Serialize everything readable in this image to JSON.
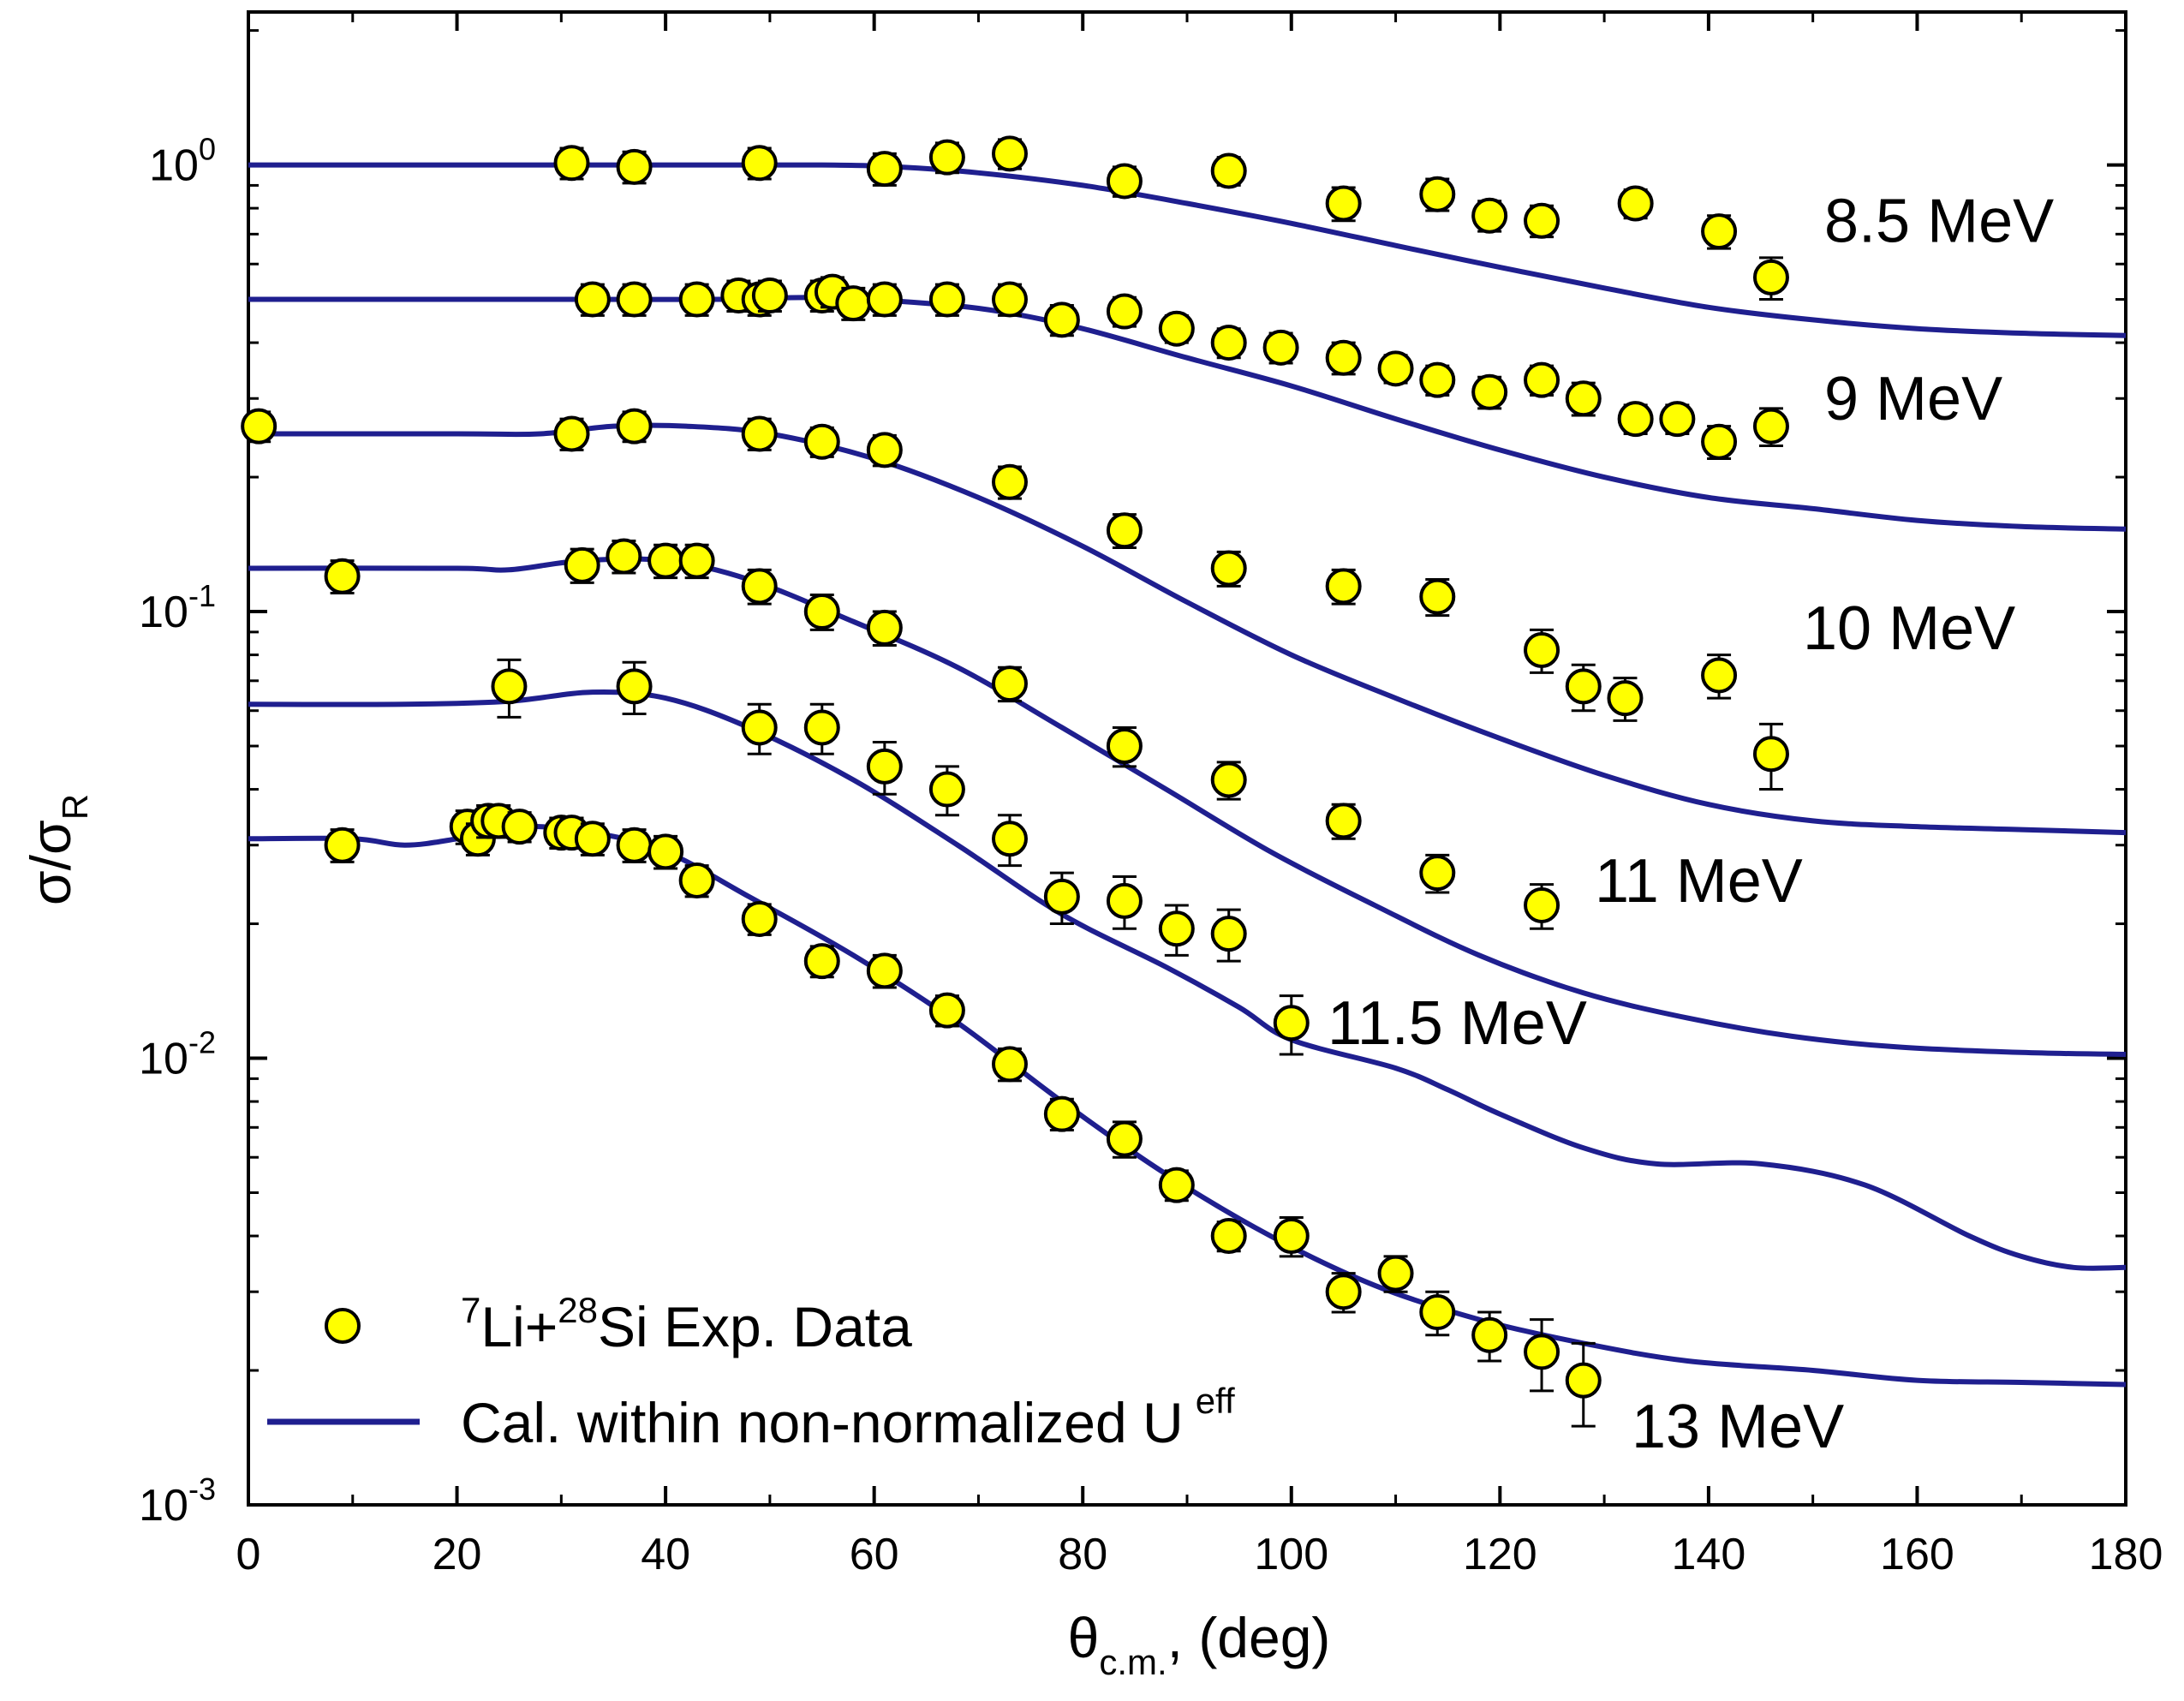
{
  "chart_data": {
    "type": "scatter",
    "xlabel": {
      "main": "θ",
      "sub": "c.m.",
      "suffix": ", (deg)"
    },
    "ylabel": {
      "main": "σ/σ",
      "sub": "R"
    },
    "xlim": [
      0,
      180
    ],
    "ylim": [
      0.001,
      2.2
    ],
    "yscale": "log",
    "grid": false,
    "x_ticks": [
      "0",
      "20",
      "40",
      "60",
      "80",
      "100",
      "120",
      "140",
      "160",
      "180"
    ],
    "y_ticks": [
      {
        "base": "10",
        "exp": "-3"
      },
      {
        "base": "10",
        "exp": "-2"
      },
      {
        "base": "10",
        "exp": "-1"
      },
      {
        "base": "10",
        "exp": "0"
      }
    ],
    "legend": {
      "placement": "bottom-left",
      "marker": {
        "pre_sup": "7",
        "t1": "Li+",
        "mid_sup": "28",
        "t2": "Si Exp. Data"
      },
      "line": {
        "text": "Cal. within non-normalized U",
        "sup": "eff"
      }
    },
    "colors": {
      "marker_fill": "#ffff00",
      "marker_edge": "#000000",
      "line": "#1f1f8f"
    },
    "series": [
      {
        "name": "8.5 MeV",
        "points": [
          [
            31,
            1.01
          ],
          [
            37,
            0.99
          ],
          [
            49,
            1.01
          ],
          [
            61,
            0.98
          ],
          [
            67,
            1.04
          ],
          [
            73,
            1.06
          ],
          [
            84,
            0.92
          ],
          [
            94,
            0.97
          ],
          [
            105,
            0.82
          ],
          [
            114,
            0.86
          ],
          [
            119,
            0.77
          ],
          [
            124,
            0.75
          ],
          [
            133,
            0.82
          ],
          [
            141,
            0.71
          ],
          [
            146,
            0.56
          ]
        ],
        "errors": [
          0.08,
          0.08,
          0.08,
          0.08,
          0.08,
          0.08,
          0.07,
          0.07,
          0.07,
          0.07,
          0.06,
          0.06,
          0.06,
          0.06,
          0.06
        ],
        "curve": [
          [
            0,
            1.0
          ],
          [
            20,
            1.0
          ],
          [
            40,
            1.0
          ],
          [
            55,
            1.0
          ],
          [
            62,
            0.99
          ],
          [
            70,
            0.96
          ],
          [
            80,
            0.9
          ],
          [
            90,
            0.82
          ],
          [
            100,
            0.74
          ],
          [
            110,
            0.66
          ],
          [
            120,
            0.59
          ],
          [
            130,
            0.53
          ],
          [
            140,
            0.48
          ],
          [
            150,
            0.45
          ],
          [
            160,
            0.43
          ],
          [
            170,
            0.42
          ],
          [
            180,
            0.415
          ]
        ]
      },
      {
        "name": "9 MeV",
        "points": [
          [
            33,
            0.5
          ],
          [
            37,
            0.5
          ],
          [
            43,
            0.5
          ],
          [
            47,
            0.51
          ],
          [
            49,
            0.5
          ],
          [
            50,
            0.51
          ],
          [
            55,
            0.51
          ],
          [
            56,
            0.52
          ],
          [
            58,
            0.49
          ],
          [
            61,
            0.5
          ],
          [
            67,
            0.5
          ],
          [
            73,
            0.5
          ],
          [
            78,
            0.45
          ],
          [
            84,
            0.47
          ],
          [
            89,
            0.43
          ],
          [
            94,
            0.4
          ],
          [
            99,
            0.39
          ],
          [
            105,
            0.37
          ],
          [
            110,
            0.35
          ],
          [
            114,
            0.33
          ],
          [
            119,
            0.31
          ],
          [
            124,
            0.33
          ],
          [
            128,
            0.3
          ],
          [
            133,
            0.27
          ],
          [
            137,
            0.27
          ],
          [
            141,
            0.24
          ],
          [
            146,
            0.26
          ]
        ],
        "errors": [
          0.04,
          0.04,
          0.04,
          0.04,
          0.04,
          0.04,
          0.04,
          0.04,
          0.04,
          0.04,
          0.04,
          0.04,
          0.035,
          0.035,
          0.03,
          0.03,
          0.03,
          0.03,
          0.025,
          0.025,
          0.025,
          0.025,
          0.025,
          0.02,
          0.02,
          0.02,
          0.025
        ],
        "curve": [
          [
            0,
            0.5
          ],
          [
            30,
            0.5
          ],
          [
            45,
            0.5
          ],
          [
            55,
            0.505
          ],
          [
            65,
            0.49
          ],
          [
            72,
            0.47
          ],
          [
            80,
            0.43
          ],
          [
            90,
            0.37
          ],
          [
            100,
            0.32
          ],
          [
            110,
            0.27
          ],
          [
            120,
            0.23
          ],
          [
            130,
            0.2
          ],
          [
            140,
            0.18
          ],
          [
            150,
            0.17
          ],
          [
            160,
            0.16
          ],
          [
            170,
            0.155
          ],
          [
            180,
            0.153
          ]
        ]
      },
      {
        "name": "10 MeV",
        "points": [
          [
            1,
            0.26
          ],
          [
            31,
            0.25
          ],
          [
            37,
            0.26
          ],
          [
            49,
            0.25
          ],
          [
            55,
            0.24
          ],
          [
            61,
            0.23
          ],
          [
            73,
            0.195
          ],
          [
            84,
            0.152
          ],
          [
            94,
            0.125
          ],
          [
            105,
            0.114
          ],
          [
            114,
            0.108
          ],
          [
            124,
            0.082
          ],
          [
            128,
            0.068
          ],
          [
            132,
            0.064
          ],
          [
            141,
            0.072
          ],
          [
            146,
            0.048
          ]
        ],
        "errors": [
          0.02,
          0.02,
          0.02,
          0.02,
          0.018,
          0.018,
          0.016,
          0.013,
          0.011,
          0.01,
          0.01,
          0.009,
          0.008,
          0.007,
          0.008,
          0.008
        ],
        "curve": [
          [
            0,
            0.25
          ],
          [
            20,
            0.25
          ],
          [
            28,
            0.25
          ],
          [
            35,
            0.26
          ],
          [
            42,
            0.26
          ],
          [
            50,
            0.25
          ],
          [
            60,
            0.22
          ],
          [
            70,
            0.18
          ],
          [
            80,
            0.14
          ],
          [
            90,
            0.105
          ],
          [
            100,
            0.08
          ],
          [
            110,
            0.064
          ],
          [
            120,
            0.052
          ],
          [
            130,
            0.043
          ],
          [
            140,
            0.037
          ],
          [
            150,
            0.034
          ],
          [
            160,
            0.033
          ],
          [
            170,
            0.0325
          ],
          [
            180,
            0.032
          ]
        ]
      },
      {
        "name": "11 MeV",
        "points": [
          [
            9,
            0.12
          ],
          [
            32,
            0.127
          ],
          [
            36,
            0.133
          ],
          [
            40,
            0.13
          ],
          [
            43,
            0.13
          ],
          [
            49,
            0.114
          ],
          [
            55,
            0.1
          ],
          [
            61,
            0.092
          ],
          [
            73,
            0.069
          ],
          [
            84,
            0.05
          ],
          [
            94,
            0.042
          ],
          [
            105,
            0.034
          ],
          [
            114,
            0.026
          ],
          [
            124,
            0.022
          ]
        ],
        "errors": [
          0.01,
          0.011,
          0.011,
          0.011,
          0.011,
          0.01,
          0.009,
          0.008,
          0.006,
          0.005,
          0.004,
          0.003,
          0.0025,
          0.0025
        ],
        "curve": [
          [
            0,
            0.125
          ],
          [
            20,
            0.125
          ],
          [
            25,
            0.124
          ],
          [
            32,
            0.13
          ],
          [
            40,
            0.13
          ],
          [
            48,
            0.118
          ],
          [
            58,
            0.095
          ],
          [
            68,
            0.075
          ],
          [
            78,
            0.055
          ],
          [
            88,
            0.04
          ],
          [
            98,
            0.029
          ],
          [
            108,
            0.022
          ],
          [
            118,
            0.017
          ],
          [
            128,
            0.014
          ],
          [
            138,
            0.0123
          ],
          [
            148,
            0.0112
          ],
          [
            158,
            0.0106
          ],
          [
            170,
            0.0103
          ],
          [
            180,
            0.0102
          ]
        ]
      },
      {
        "name": "11.5 MeV",
        "points": [
          [
            25,
            0.068
          ],
          [
            37,
            0.068
          ],
          [
            49,
            0.055
          ],
          [
            55,
            0.055
          ],
          [
            61,
            0.045
          ],
          [
            67,
            0.04
          ],
          [
            73,
            0.031
          ],
          [
            78,
            0.023
          ],
          [
            84,
            0.0225
          ],
          [
            89,
            0.0195
          ],
          [
            94,
            0.019
          ],
          [
            100,
            0.012
          ]
        ],
        "errors": [
          0.01,
          0.009,
          0.007,
          0.007,
          0.006,
          0.005,
          0.004,
          0.003,
          0.003,
          0.0025,
          0.0025,
          0.0018
        ],
        "curve": [
          [
            0,
            0.062
          ],
          [
            15,
            0.062
          ],
          [
            25,
            0.063
          ],
          [
            33,
            0.066
          ],
          [
            40,
            0.064
          ],
          [
            48,
            0.055
          ],
          [
            58,
            0.042
          ],
          [
            68,
            0.03
          ],
          [
            78,
            0.021
          ],
          [
            88,
            0.016
          ],
          [
            95,
            0.013
          ],
          [
            100,
            0.011
          ],
          [
            110,
            0.0095
          ],
          [
            115,
            0.0085
          ],
          [
            120,
            0.0075
          ],
          [
            128,
            0.0063
          ],
          [
            135,
            0.0058
          ],
          [
            145,
            0.0058
          ],
          [
            155,
            0.0052
          ],
          [
            165,
            0.004
          ],
          [
            170,
            0.0036
          ],
          [
            175,
            0.0034
          ],
          [
            180,
            0.0034
          ]
        ]
      },
      {
        "name": "13 MeV",
        "points": [
          [
            9,
            0.03
          ],
          [
            21,
            0.033
          ],
          [
            22,
            0.031
          ],
          [
            23,
            0.034
          ],
          [
            24,
            0.034
          ],
          [
            26,
            0.033
          ],
          [
            30,
            0.032
          ],
          [
            31,
            0.032
          ],
          [
            33,
            0.031
          ],
          [
            37,
            0.03
          ],
          [
            40,
            0.029
          ],
          [
            43,
            0.025
          ],
          [
            49,
            0.0205
          ],
          [
            55,
            0.0165
          ],
          [
            61,
            0.0157
          ],
          [
            67,
            0.0128
          ],
          [
            73,
            0.0097
          ],
          [
            78,
            0.0075
          ],
          [
            84,
            0.0066
          ],
          [
            89,
            0.0052
          ],
          [
            94,
            0.004
          ],
          [
            100,
            0.004
          ],
          [
            105,
            0.003
          ],
          [
            110,
            0.0033
          ],
          [
            114,
            0.0027
          ],
          [
            119,
            0.0024
          ],
          [
            124,
            0.0022
          ],
          [
            128,
            0.0019
          ]
        ],
        "errors": [
          0.0025,
          0.0028,
          0.0025,
          0.0028,
          0.0028,
          0.0025,
          0.0025,
          0.0025,
          0.0025,
          0.0025,
          0.0024,
          0.002,
          0.0016,
          0.0013,
          0.0013,
          0.001,
          0.0008,
          0.0006,
          0.0006,
          0.0004,
          0.0003,
          0.0004,
          0.0003,
          0.0003,
          0.0003,
          0.0003,
          0.0004,
          0.0004
        ],
        "curve": [
          [
            0,
            0.031
          ],
          [
            10,
            0.031
          ],
          [
            15,
            0.03
          ],
          [
            20,
            0.031
          ],
          [
            26,
            0.033
          ],
          [
            33,
            0.032
          ],
          [
            40,
            0.029
          ],
          [
            48,
            0.023
          ],
          [
            58,
            0.017
          ],
          [
            68,
            0.012
          ],
          [
            78,
            0.008
          ],
          [
            88,
            0.0055
          ],
          [
            98,
            0.004
          ],
          [
            108,
            0.0031
          ],
          [
            118,
            0.0026
          ],
          [
            128,
            0.0023
          ],
          [
            138,
            0.0021
          ],
          [
            150,
            0.002
          ],
          [
            160,
            0.0019
          ],
          [
            170,
            0.00188
          ],
          [
            180,
            0.00186
          ]
        ]
      }
    ],
    "series_label_positions": [
      [
        8.5,
        0.75
      ],
      [
        9,
        0.3
      ],
      [
        10,
        0.092
      ],
      [
        11,
        0.025
      ],
      [
        11.5,
        0.012
      ],
      [
        13,
        0.0015
      ]
    ]
  }
}
